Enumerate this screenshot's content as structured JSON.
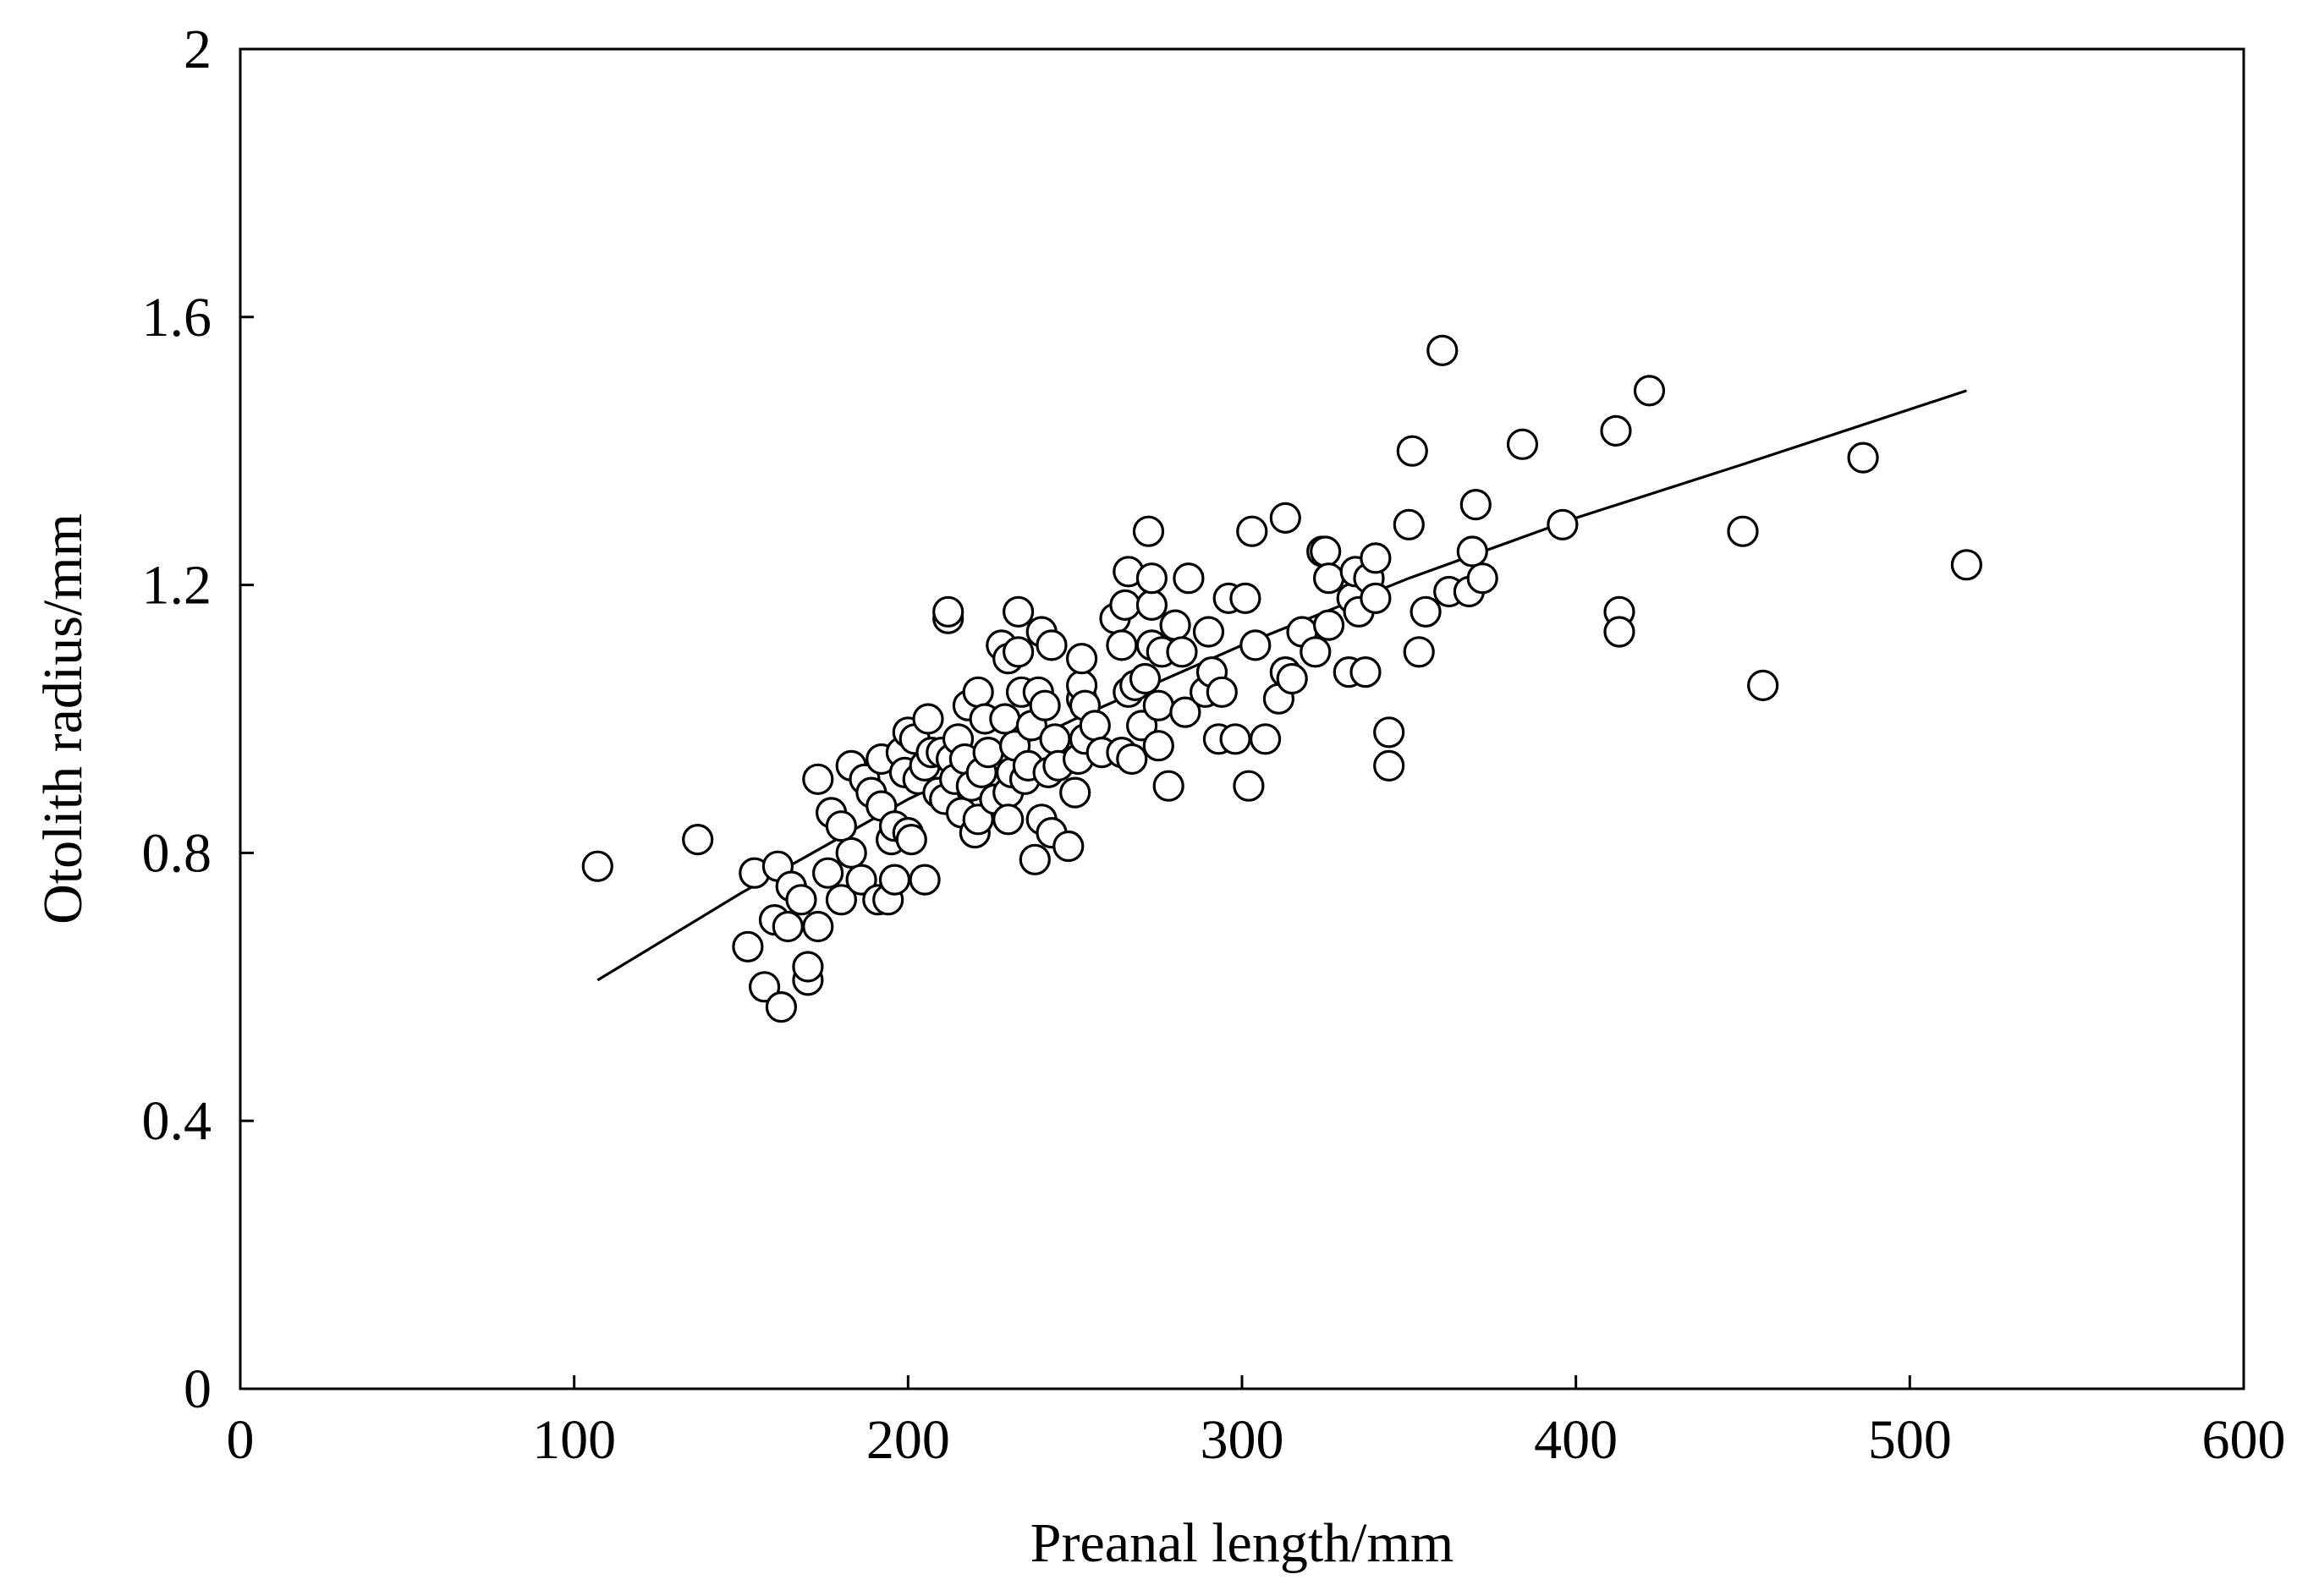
{
  "chart_data": {
    "type": "scatter",
    "title": "",
    "xlabel": "Preanal length/mm",
    "ylabel": "Otolith radius/mm",
    "xlim": [
      0,
      600
    ],
    "ylim": [
      0,
      2
    ],
    "xticks": [
      0,
      100,
      200,
      300,
      400,
      500,
      600
    ],
    "yticks": [
      0,
      0.4,
      0.8,
      1.2,
      1.6,
      2
    ],
    "xtick_labels": [
      "0",
      "100",
      "200",
      "300",
      "400",
      "500",
      "600"
    ],
    "ytick_labels": [
      "0",
      "0.4",
      "0.8",
      "1.2",
      "1.6",
      "2"
    ],
    "grid": false,
    "legend": "none",
    "colors": {
      "marker_fill": "#ffffff",
      "marker_stroke": "#000000",
      "line": "#000000"
    },
    "fit_curve": {
      "x": [
        107,
        150,
        200,
        250,
        300,
        350,
        400,
        450,
        517
      ],
      "y": [
        0.61,
        0.74,
        0.88,
        1.0,
        1.11,
        1.21,
        1.3,
        1.38,
        1.49
      ]
    },
    "points": [
      [
        107,
        0.78
      ],
      [
        137,
        0.82
      ],
      [
        152,
        0.66
      ],
      [
        154,
        0.77
      ],
      [
        157,
        0.6
      ],
      [
        160,
        0.7
      ],
      [
        161,
        0.78
      ],
      [
        162,
        0.57
      ],
      [
        164,
        0.69
      ],
      [
        165,
        0.75
      ],
      [
        168,
        0.73
      ],
      [
        170,
        0.61
      ],
      [
        170,
        0.63
      ],
      [
        173,
        0.69
      ],
      [
        173,
        0.91
      ],
      [
        176,
        0.77
      ],
      [
        177,
        0.86
      ],
      [
        180,
        0.73
      ],
      [
        180,
        0.84
      ],
      [
        183,
        0.8
      ],
      [
        183,
        0.93
      ],
      [
        186,
        0.76
      ],
      [
        187,
        0.91
      ],
      [
        189,
        0.89
      ],
      [
        191,
        0.73
      ],
      [
        192,
        0.87
      ],
      [
        192,
        0.94
      ],
      [
        194,
        0.73
      ],
      [
        195,
        0.82
      ],
      [
        196,
        0.84
      ],
      [
        196,
        0.76
      ],
      [
        198,
        0.95
      ],
      [
        199,
        0.92
      ],
      [
        200,
        0.98
      ],
      [
        200,
        0.83
      ],
      [
        201,
        0.82
      ],
      [
        202,
        0.97
      ],
      [
        203,
        0.91
      ],
      [
        205,
        0.76
      ],
      [
        205,
        0.93
      ],
      [
        206,
        1.0
      ],
      [
        207,
        0.95
      ],
      [
        209,
        0.89
      ],
      [
        210,
        0.95
      ],
      [
        211,
        0.88
      ],
      [
        212,
        1.15
      ],
      [
        212,
        1.16
      ],
      [
        213,
        0.94
      ],
      [
        214,
        0.91
      ],
      [
        215,
        0.97
      ],
      [
        216,
        0.86
      ],
      [
        217,
        0.94
      ],
      [
        218,
        1.02
      ],
      [
        219,
        0.9
      ],
      [
        220,
        0.83
      ],
      [
        221,
        1.04
      ],
      [
        221,
        0.85
      ],
      [
        222,
        0.92
      ],
      [
        223,
        1.0
      ],
      [
        224,
        0.95
      ],
      [
        226,
        0.88
      ],
      [
        228,
        1.11
      ],
      [
        229,
        1.0
      ],
      [
        230,
        0.89
      ],
      [
        230,
        0.85
      ],
      [
        230,
        1.09
      ],
      [
        231,
        0.92
      ],
      [
        232,
        0.96
      ],
      [
        233,
        1.1
      ],
      [
        233,
        1.16
      ],
      [
        234,
        1.04
      ],
      [
        235,
        0.91
      ],
      [
        236,
        0.93
      ],
      [
        237,
        0.99
      ],
      [
        238,
        0.79
      ],
      [
        239,
        1.04
      ],
      [
        240,
        0.85
      ],
      [
        240,
        1.13
      ],
      [
        241,
        1.02
      ],
      [
        242,
        0.92
      ],
      [
        243,
        0.83
      ],
      [
        243,
        1.11
      ],
      [
        244,
        0.97
      ],
      [
        245,
        0.93
      ],
      [
        248,
        0.81
      ],
      [
        250,
        0.89
      ],
      [
        251,
        0.94
      ],
      [
        252,
        1.03
      ],
      [
        252,
        1.05
      ],
      [
        252,
        1.09
      ],
      [
        253,
        0.97
      ],
      [
        253,
        1.02
      ],
      [
        256,
        0.99
      ],
      [
        258,
        0.95
      ],
      [
        262,
        1.15
      ],
      [
        264,
        0.95
      ],
      [
        264,
        1.11
      ],
      [
        265,
        1.17
      ],
      [
        266,
        1.04
      ],
      [
        266,
        1.22
      ],
      [
        267,
        0.94
      ],
      [
        268,
        1.05
      ],
      [
        270,
        0.99
      ],
      [
        271,
        1.06
      ],
      [
        272,
        1.28
      ],
      [
        273,
        1.11
      ],
      [
        273,
        1.17
      ],
      [
        273,
        1.21
      ],
      [
        275,
        0.96
      ],
      [
        275,
        1.02
      ],
      [
        276,
        1.1
      ],
      [
        278,
        0.9
      ],
      [
        280,
        1.14
      ],
      [
        282,
        1.1
      ],
      [
        283,
        1.01
      ],
      [
        284,
        1.21
      ],
      [
        289,
        1.04
      ],
      [
        290,
        1.13
      ],
      [
        291,
        1.07
      ],
      [
        293,
        0.97
      ],
      [
        294,
        1.04
      ],
      [
        296,
        1.18
      ],
      [
        298,
        0.97
      ],
      [
        301,
        1.18
      ],
      [
        302,
        0.9
      ],
      [
        303,
        1.28
      ],
      [
        304,
        1.11
      ],
      [
        307,
        0.97
      ],
      [
        311,
        1.03
      ],
      [
        313,
        1.07
      ],
      [
        313,
        1.3
      ],
      [
        315,
        1.06
      ],
      [
        318,
        1.13
      ],
      [
        322,
        1.1
      ],
      [
        324,
        1.25
      ],
      [
        325,
        1.25
      ],
      [
        326,
        1.14
      ],
      [
        326,
        1.21
      ],
      [
        332,
        1.07
      ],
      [
        333,
        1.18
      ],
      [
        334,
        1.22
      ],
      [
        335,
        1.16
      ],
      [
        337,
        1.07
      ],
      [
        338,
        1.21
      ],
      [
        340,
        1.18
      ],
      [
        340,
        1.24
      ],
      [
        344,
        0.98
      ],
      [
        344,
        0.93
      ],
      [
        350,
        1.29
      ],
      [
        351,
        1.4
      ],
      [
        353,
        1.1
      ],
      [
        355,
        1.16
      ],
      [
        360,
        1.55
      ],
      [
        362,
        1.19
      ],
      [
        368,
        1.19
      ],
      [
        369,
        1.25
      ],
      [
        370,
        1.32
      ],
      [
        372,
        1.21
      ],
      [
        384,
        1.41
      ],
      [
        396,
        1.29
      ],
      [
        412,
        1.43
      ],
      [
        413,
        1.16
      ],
      [
        413,
        1.13
      ],
      [
        422,
        1.49
      ],
      [
        450,
        1.28
      ],
      [
        456,
        1.05
      ],
      [
        486,
        1.39
      ],
      [
        517,
        1.23
      ]
    ]
  }
}
